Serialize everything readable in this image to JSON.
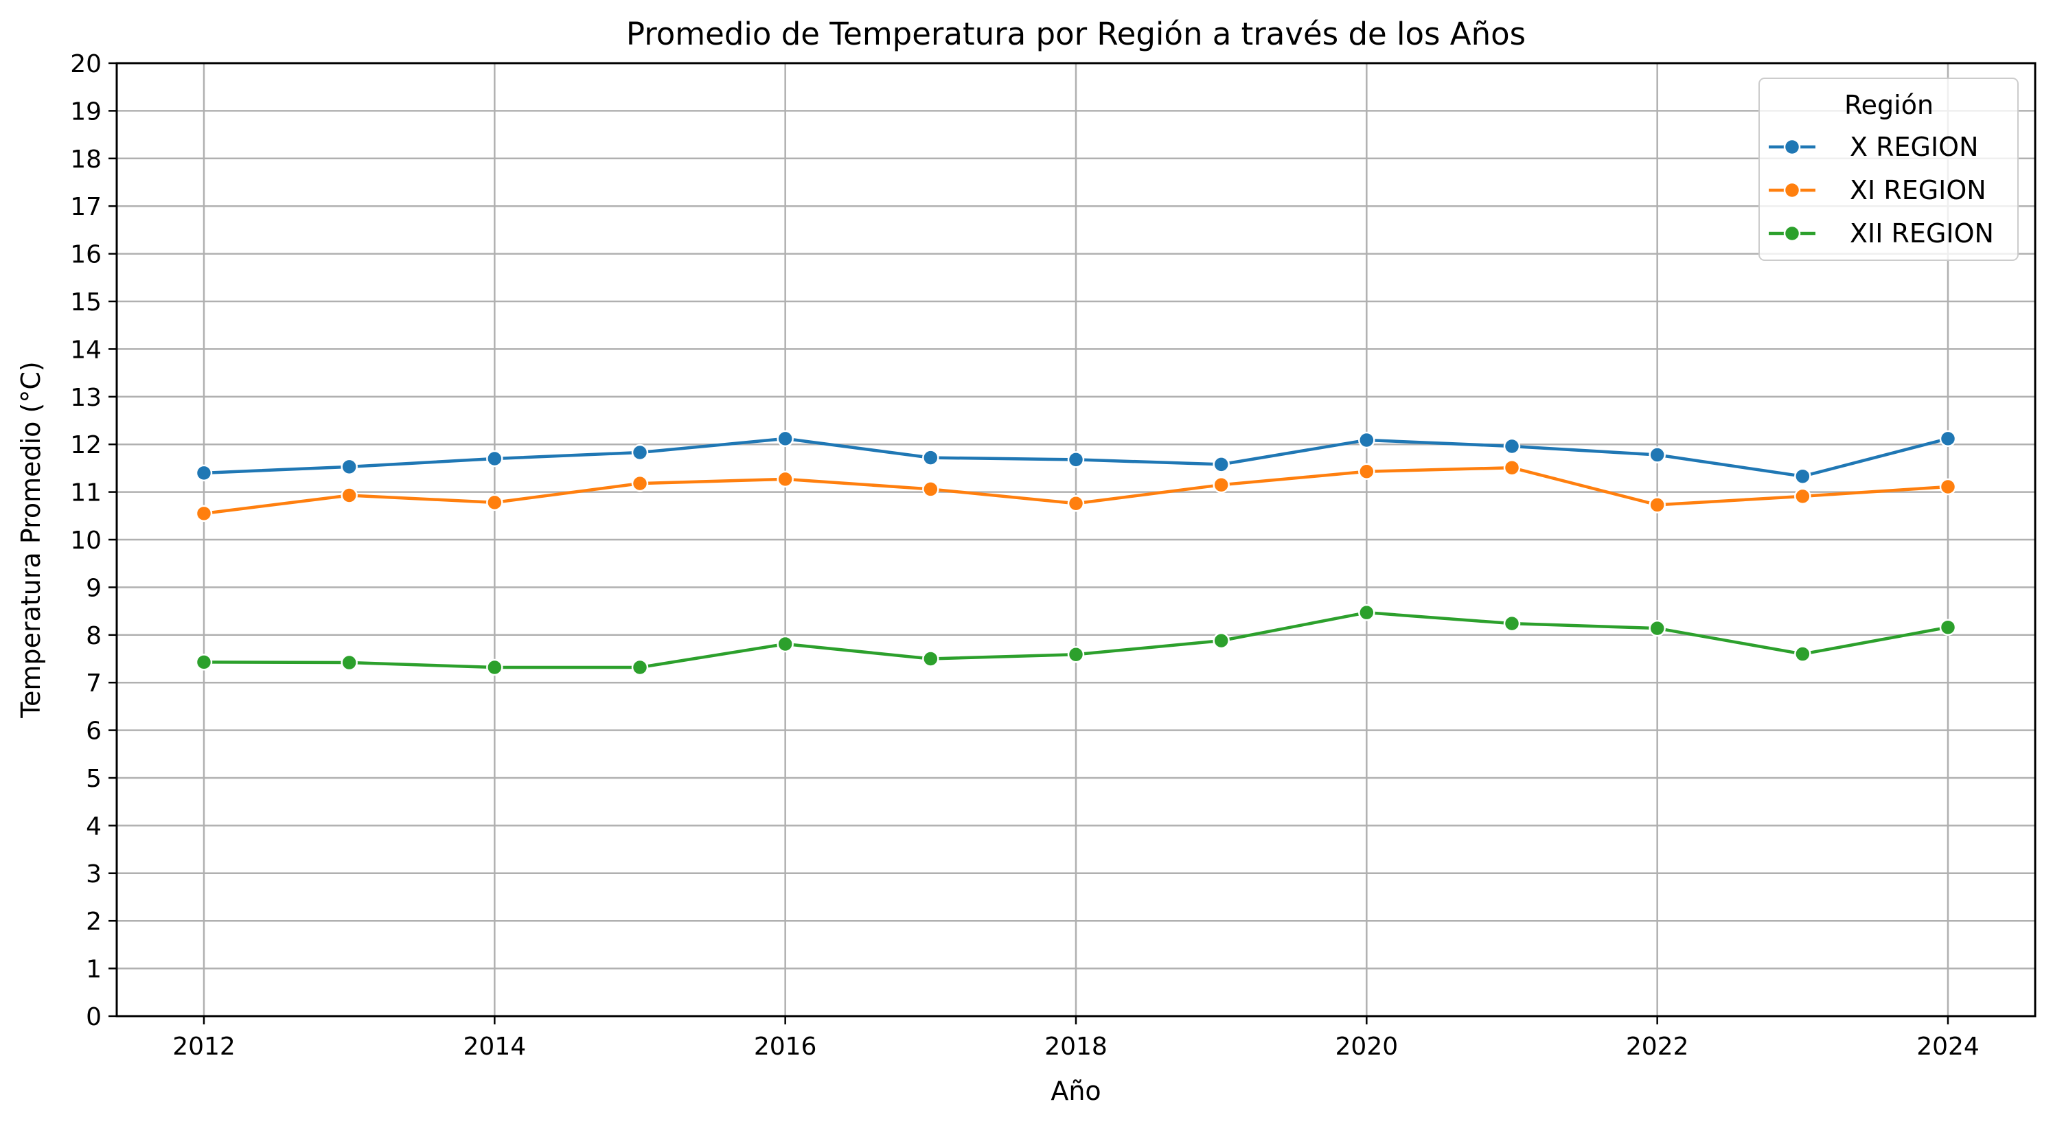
{
  "chart_data": {
    "type": "line",
    "title": "Promedio de Temperatura por Región a través de los Años",
    "xlabel": "Año",
    "ylabel": "Temperatura Promedio (°C)",
    "x": [
      2012,
      2013,
      2014,
      2015,
      2016,
      2017,
      2018,
      2019,
      2020,
      2021,
      2022,
      2023,
      2024
    ],
    "xticks": [
      "2012",
      "2014",
      "2016",
      "2018",
      "2020",
      "2022",
      "2024"
    ],
    "yticks": [
      "0",
      "1",
      "2",
      "3",
      "4",
      "5",
      "6",
      "7",
      "8",
      "9",
      "10",
      "11",
      "12",
      "13",
      "14",
      "15",
      "16",
      "17",
      "18",
      "19",
      "20"
    ],
    "xlim": [
      2011.4,
      2024.6
    ],
    "ylim": [
      0,
      20
    ],
    "grid": true,
    "legend": {
      "title": "Región",
      "placement": "top-right"
    },
    "series": [
      {
        "name": "X REGION",
        "color": "#1f77b4",
        "values": [
          11.4,
          11.53,
          11.7,
          11.83,
          12.12,
          11.72,
          11.68,
          11.58,
          12.09,
          11.96,
          11.78,
          11.33,
          12.12
        ]
      },
      {
        "name": "XI REGION",
        "color": "#ff7f0e",
        "values": [
          10.55,
          10.93,
          10.78,
          11.18,
          11.27,
          11.06,
          10.76,
          11.15,
          11.43,
          11.51,
          10.73,
          10.91,
          11.11
        ]
      },
      {
        "name": "XII REGION",
        "color": "#2ca02c",
        "values": [
          7.43,
          7.42,
          7.32,
          7.32,
          7.81,
          7.5,
          7.59,
          7.88,
          8.47,
          8.24,
          8.14,
          7.6,
          8.16
        ]
      }
    ]
  }
}
